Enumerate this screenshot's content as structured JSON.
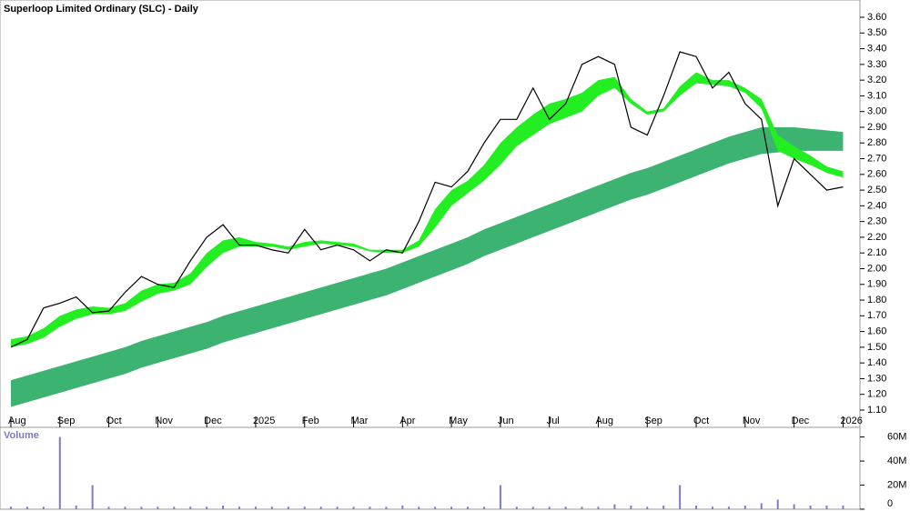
{
  "chart_data": [
    {
      "type": "line",
      "title": "Superloop Limited Ordinary (SLC) - Daily",
      "categories": [
        "Aug",
        null,
        null,
        "Sep",
        null,
        null,
        "Oct",
        null,
        null,
        "Nov",
        null,
        null,
        "Dec",
        null,
        null,
        "2025",
        null,
        null,
        "Feb",
        null,
        null,
        "Mar",
        null,
        null,
        "Apr",
        null,
        null,
        "May",
        null,
        null,
        "Jun",
        null,
        null,
        "Jul",
        null,
        null,
        "Aug",
        null,
        null,
        "Sep",
        null,
        null,
        "Oct",
        null,
        null,
        "Nov",
        null,
        null,
        "Dec",
        null,
        null,
        "2026"
      ],
      "series": [
        {
          "color": "#000000",
          "values": [
            1.5,
            1.55,
            1.75,
            1.78,
            1.82,
            1.72,
            1.73,
            1.85,
            1.95,
            1.9,
            1.88,
            2.05,
            2.2,
            2.28,
            2.15,
            2.15,
            2.12,
            2.1,
            2.25,
            2.12,
            2.15,
            2.12,
            2.05,
            2.12,
            2.1,
            2.3,
            2.55,
            2.52,
            2.62,
            2.8,
            2.95,
            2.95,
            3.15,
            2.95,
            3.05,
            3.3,
            3.35,
            3.3,
            2.9,
            2.85,
            3.1,
            3.38,
            3.35,
            3.15,
            3.25,
            3.05,
            2.95,
            2.4,
            2.7,
            2.6,
            2.5,
            2.52
          ]
        }
      ],
      "bands": [
        {
          "color": "#3cb371",
          "upper": [
            1.29,
            1.32,
            1.35,
            1.38,
            1.41,
            1.44,
            1.47,
            1.5,
            1.54,
            1.57,
            1.6,
            1.63,
            1.66,
            1.7,
            1.73,
            1.76,
            1.79,
            1.82,
            1.85,
            1.88,
            1.91,
            1.94,
            1.97,
            2.0,
            2.04,
            2.08,
            2.12,
            2.16,
            2.2,
            2.25,
            2.29,
            2.33,
            2.37,
            2.41,
            2.45,
            2.49,
            2.53,
            2.57,
            2.61,
            2.64,
            2.68,
            2.72,
            2.76,
            2.8,
            2.84,
            2.87,
            2.9,
            2.9,
            2.9,
            2.89,
            2.88,
            2.87
          ],
          "lower": [
            1.12,
            1.15,
            1.18,
            1.21,
            1.24,
            1.27,
            1.3,
            1.33,
            1.37,
            1.4,
            1.43,
            1.46,
            1.49,
            1.53,
            1.56,
            1.59,
            1.62,
            1.65,
            1.68,
            1.71,
            1.74,
            1.77,
            1.8,
            1.83,
            1.87,
            1.91,
            1.95,
            1.99,
            2.03,
            2.08,
            2.12,
            2.16,
            2.2,
            2.24,
            2.28,
            2.32,
            2.36,
            2.4,
            2.44,
            2.47,
            2.51,
            2.55,
            2.59,
            2.63,
            2.67,
            2.7,
            2.73,
            2.74,
            2.75,
            2.75,
            2.75,
            2.75
          ]
        },
        {
          "color": "#22ee22",
          "upper": [
            1.55,
            1.57,
            1.62,
            1.7,
            1.74,
            1.76,
            1.75,
            1.78,
            1.86,
            1.9,
            1.91,
            1.97,
            2.1,
            2.18,
            2.2,
            2.17,
            2.16,
            2.14,
            2.17,
            2.18,
            2.17,
            2.16,
            2.12,
            2.12,
            2.12,
            2.18,
            2.38,
            2.5,
            2.56,
            2.66,
            2.8,
            2.9,
            2.98,
            3.05,
            3.08,
            3.12,
            3.2,
            3.22,
            3.08,
            3.0,
            3.02,
            3.16,
            3.25,
            3.2,
            3.2,
            3.15,
            3.08,
            2.85,
            2.78,
            2.72,
            2.65,
            2.62
          ],
          "lower": [
            1.5,
            1.52,
            1.56,
            1.63,
            1.68,
            1.71,
            1.71,
            1.73,
            1.79,
            1.84,
            1.86,
            1.9,
            2.01,
            2.1,
            2.14,
            2.14,
            2.14,
            2.12,
            2.14,
            2.16,
            2.15,
            2.14,
            2.11,
            2.1,
            2.1,
            2.14,
            2.26,
            2.4,
            2.48,
            2.56,
            2.66,
            2.78,
            2.85,
            2.92,
            2.96,
            3.0,
            3.1,
            3.15,
            3.05,
            2.98,
            3.0,
            3.1,
            3.18,
            3.17,
            3.16,
            3.12,
            3.02,
            2.75,
            2.7,
            2.66,
            2.61,
            2.58
          ]
        }
      ],
      "ylim": [
        0.99,
        3.71
      ],
      "yticks": [
        {
          "value": 1.1,
          "label": "1.10"
        },
        {
          "value": 1.2,
          "label": "1.20"
        },
        {
          "value": 1.3,
          "label": "1.30"
        },
        {
          "value": 1.4,
          "label": "1.40"
        },
        {
          "value": 1.5,
          "label": "1.50"
        },
        {
          "value": 1.6,
          "label": "1.60"
        },
        {
          "value": 1.7,
          "label": "1.70"
        },
        {
          "value": 1.8,
          "label": "1.80"
        },
        {
          "value": 1.9,
          "label": "1.90"
        },
        {
          "value": 2.0,
          "label": "2.00"
        },
        {
          "value": 2.1,
          "label": "2.10"
        },
        {
          "value": 2.2,
          "label": "2.20"
        },
        {
          "value": 2.3,
          "label": "2.30"
        },
        {
          "value": 2.4,
          "label": "2.40"
        },
        {
          "value": 2.5,
          "label": "2.50"
        },
        {
          "value": 2.6,
          "label": "2.60"
        },
        {
          "value": 2.7,
          "label": "2.70"
        },
        {
          "value": 2.8,
          "label": "2.80"
        },
        {
          "value": 2.9,
          "label": "2.90"
        },
        {
          "value": 3.0,
          "label": "3.00"
        },
        {
          "value": 3.1,
          "label": "3.10"
        },
        {
          "value": 3.2,
          "label": "3.20"
        },
        {
          "value": 3.3,
          "label": "3.30"
        },
        {
          "value": 3.4,
          "label": "3.40"
        },
        {
          "value": 3.5,
          "label": "3.50"
        },
        {
          "value": 3.6,
          "label": "3.60"
        }
      ]
    },
    {
      "type": "bar",
      "title": "Volume",
      "color": "#7b7bc8",
      "values": [
        2000000,
        2000000,
        2000000,
        60000000,
        3000000,
        20000000,
        2000000,
        2000000,
        2000000,
        2000000,
        2000000,
        2000000,
        2000000,
        3000000,
        2000000,
        2000000,
        2000000,
        2000000,
        2000000,
        2000000,
        2000000,
        2000000,
        2000000,
        2000000,
        3000000,
        2000000,
        2000000,
        2000000,
        2000000,
        2000000,
        20000000,
        2000000,
        2000000,
        2000000,
        2000000,
        2000000,
        2000000,
        4000000,
        3000000,
        2000000,
        3000000,
        20000000,
        3000000,
        2000000,
        2000000,
        3000000,
        5000000,
        8000000,
        4000000,
        3000000,
        3000000,
        3000000
      ],
      "ylim": [
        0,
        68000000
      ],
      "yticks": [
        0,
        {
          "value": 20000000,
          "label": "20M"
        },
        {
          "value": 40000000,
          "label": "40M"
        },
        {
          "value": 60000000,
          "label": "60M"
        }
      ]
    }
  ]
}
